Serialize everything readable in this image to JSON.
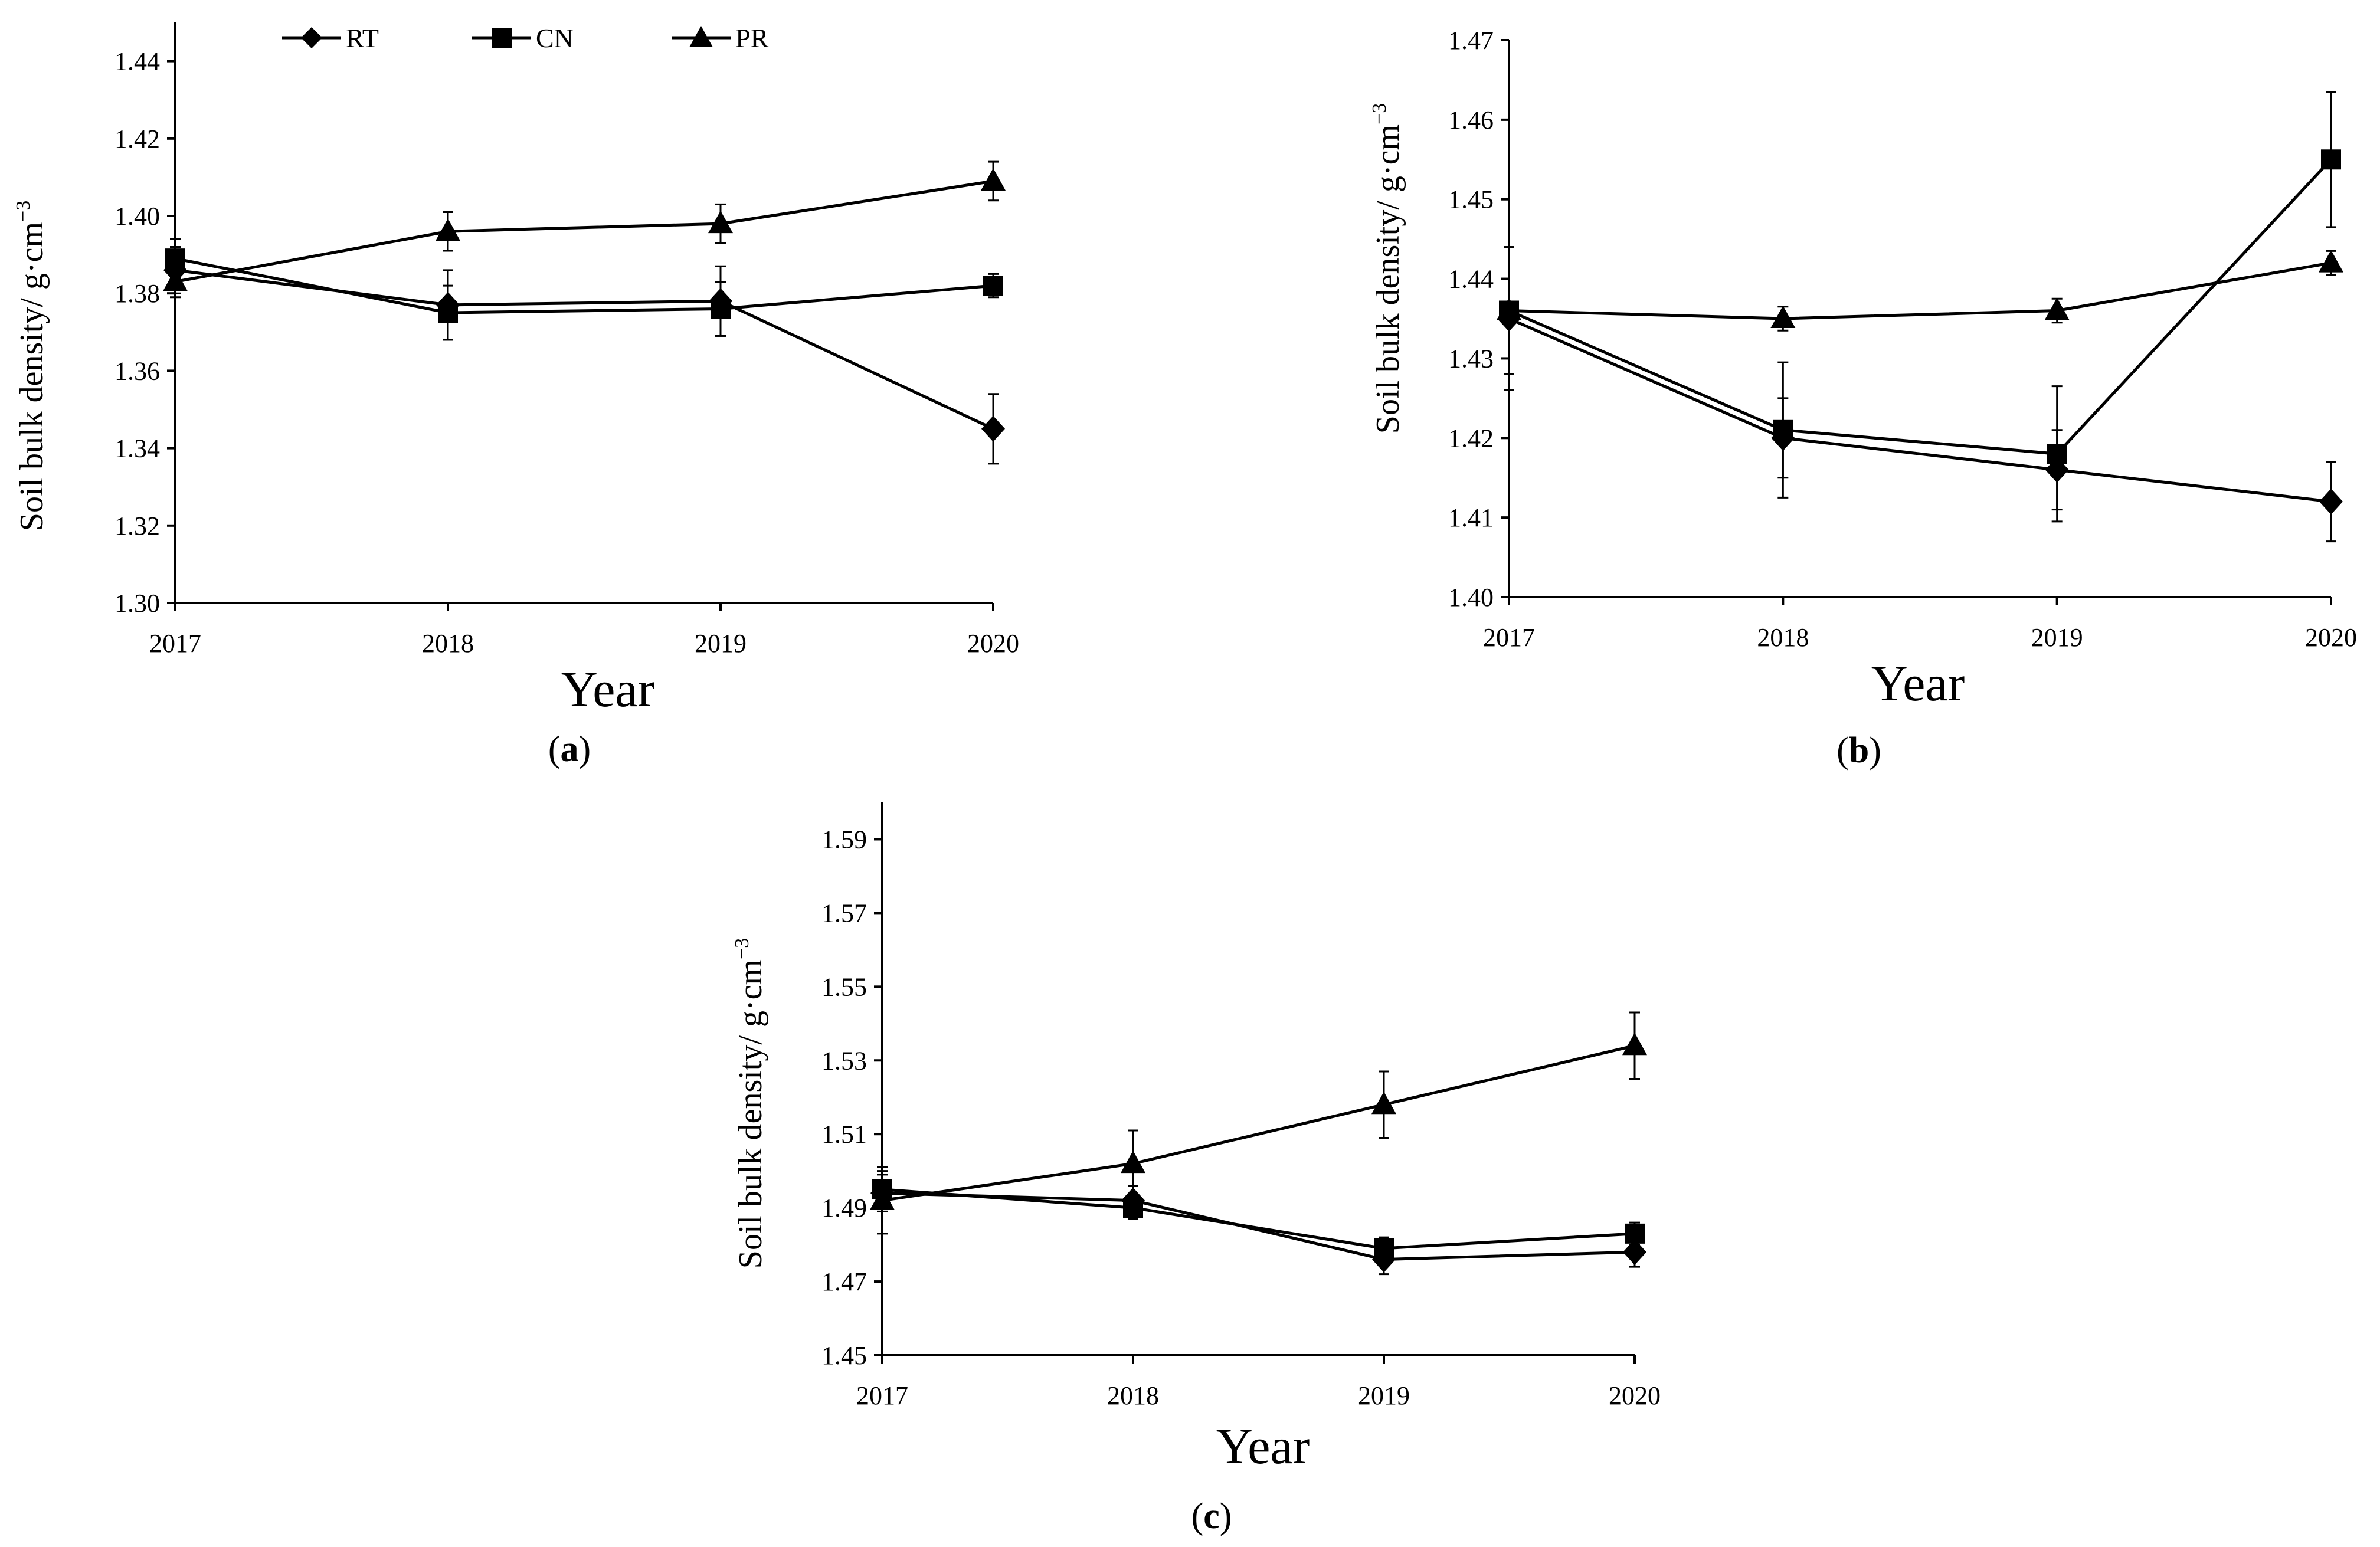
{
  "figure": {
    "legend": [
      {
        "key": "RT",
        "marker": "diamond"
      },
      {
        "key": "CN",
        "marker": "square"
      },
      {
        "key": "PR",
        "marker": "triangle"
      }
    ]
  },
  "chart_data": [
    {
      "id": "a",
      "type": "line",
      "caption": "a",
      "xlabel": "Year",
      "ylabel": "Soil bulk density/ g·cm",
      "ylabel_sup": "−3",
      "categories": [
        "2017",
        "2018",
        "2019",
        "2020"
      ],
      "ylim": [
        1.3,
        1.45
      ],
      "yticks": [
        "1.30",
        "1.32",
        "1.34",
        "1.36",
        "1.38",
        "1.40",
        "1.42",
        "1.44"
      ],
      "series": [
        {
          "name": "RT",
          "marker": "diamond",
          "values": [
            1.386,
            1.377,
            1.378,
            1.345
          ],
          "errors": [
            0.006,
            0.009,
            0.009,
            0.009
          ]
        },
        {
          "name": "CN",
          "marker": "square",
          "values": [
            1.389,
            1.375,
            1.376,
            1.382
          ],
          "errors": [
            0.005,
            0.007,
            0.007,
            0.003
          ]
        },
        {
          "name": "PR",
          "marker": "triangle",
          "values": [
            1.383,
            1.396,
            1.398,
            1.409
          ],
          "errors": [
            0.004,
            0.005,
            0.005,
            0.005
          ]
        }
      ]
    },
    {
      "id": "b",
      "type": "line",
      "caption": "b",
      "xlabel": "Year",
      "ylabel": "Soil bulk density/ g·cm",
      "ylabel_sup": "−3",
      "categories": [
        "2017",
        "2018",
        "2019",
        "2020"
      ],
      "ylim": [
        1.4,
        1.47
      ],
      "yticks": [
        "1.40",
        "1.41",
        "1.42",
        "1.43",
        "1.44",
        "1.45",
        "1.46",
        "1.47"
      ],
      "series": [
        {
          "name": "RT",
          "marker": "diamond",
          "values": [
            1.435,
            1.42,
            1.416,
            1.412
          ],
          "errors": [
            0.009,
            0.005,
            0.005,
            0.005
          ]
        },
        {
          "name": "CN",
          "marker": "square",
          "values": [
            1.436,
            1.421,
            1.418,
            1.455
          ],
          "errors": [
            0.008,
            0.0085,
            0.0085,
            0.0085
          ]
        },
        {
          "name": "PR",
          "marker": "triangle",
          "values": [
            1.436,
            1.435,
            1.436,
            1.442
          ],
          "errors": [
            0.001,
            0.0015,
            0.0015,
            0.0015
          ]
        }
      ]
    },
    {
      "id": "c",
      "type": "line",
      "caption": "c",
      "xlabel": "Year",
      "ylabel": "Soil bulk density/ g·cm",
      "ylabel_sup": "−3",
      "categories": [
        "2017",
        "2018",
        "2019",
        "2020"
      ],
      "ylim": [
        1.45,
        1.6
      ],
      "yticks": [
        "1.45",
        "1.47",
        "1.49",
        "1.51",
        "1.53",
        "1.55",
        "1.57",
        "1.59"
      ],
      "series": [
        {
          "name": "RT",
          "marker": "diamond",
          "values": [
            1.494,
            1.492,
            1.476,
            1.478
          ],
          "errors": [
            0.005,
            0.004,
            0.004,
            0.004
          ]
        },
        {
          "name": "CN",
          "marker": "square",
          "values": [
            1.495,
            1.49,
            1.479,
            1.483
          ],
          "errors": [
            0.005,
            0.003,
            0.003,
            0.003
          ]
        },
        {
          "name": "PR",
          "marker": "triangle",
          "values": [
            1.492,
            1.502,
            1.518,
            1.534
          ],
          "errors": [
            0.009,
            0.009,
            0.009,
            0.009
          ]
        }
      ]
    }
  ]
}
